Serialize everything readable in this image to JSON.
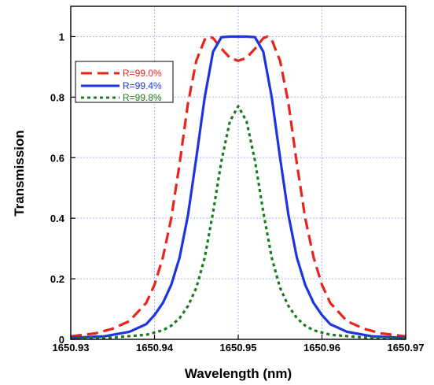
{
  "chart_data": {
    "type": "line",
    "title": "",
    "xlabel": "Wavelength (nm)",
    "ylabel": "Transmission",
    "xlim": [
      1650.93,
      1650.97
    ],
    "ylim": [
      0,
      1.1
    ],
    "x_ticks": [
      1650.93,
      1650.94,
      1650.95,
      1650.96,
      1650.97
    ],
    "x_tick_labels": [
      "1650.93",
      "1650.94",
      "1650.95",
      "1650.96",
      "1650.97"
    ],
    "y_ticks": [
      0,
      0.2,
      0.4,
      0.6,
      0.8,
      1
    ],
    "y_tick_labels": [
      "0",
      "0.2",
      "0.4",
      "0.6",
      "0.8",
      "1"
    ],
    "grid": true,
    "legend_position": "upper-left",
    "series": [
      {
        "name": "R=99.0%",
        "color": "#e8241b",
        "dash": "dashed",
        "x": [
          1650.93,
          1650.933,
          1650.935,
          1650.937,
          1650.939,
          1650.94,
          1650.941,
          1650.942,
          1650.943,
          1650.944,
          1650.945,
          1650.946,
          1650.9465,
          1650.947,
          1650.948,
          1650.949,
          1650.95,
          1650.951,
          1650.952,
          1650.953,
          1650.9535,
          1650.954,
          1650.955,
          1650.956,
          1650.957,
          1650.958,
          1650.959,
          1650.96,
          1650.961,
          1650.963,
          1650.965,
          1650.967,
          1650.97
        ],
        "y": [
          0.01,
          0.02,
          0.035,
          0.06,
          0.12,
          0.18,
          0.27,
          0.4,
          0.58,
          0.78,
          0.92,
          0.99,
          1.0,
          0.995,
          0.96,
          0.93,
          0.92,
          0.93,
          0.96,
          0.995,
          1.0,
          0.99,
          0.92,
          0.78,
          0.58,
          0.4,
          0.27,
          0.18,
          0.12,
          0.06,
          0.035,
          0.02,
          0.01
        ]
      },
      {
        "name": "R=99.4%",
        "color": "#1c35e0",
        "dash": "solid",
        "x": [
          1650.93,
          1650.934,
          1650.937,
          1650.939,
          1650.94,
          1650.941,
          1650.942,
          1650.943,
          1650.944,
          1650.945,
          1650.946,
          1650.947,
          1650.948,
          1650.949,
          1650.95,
          1650.951,
          1650.952,
          1650.953,
          1650.954,
          1650.955,
          1650.956,
          1650.957,
          1650.958,
          1650.959,
          1650.96,
          1650.961,
          1650.963,
          1650.966,
          1650.97
        ],
        "y": [
          0.005,
          0.01,
          0.025,
          0.05,
          0.08,
          0.12,
          0.18,
          0.27,
          0.41,
          0.6,
          0.8,
          0.95,
          0.998,
          1.0,
          1.0,
          1.0,
          0.998,
          0.95,
          0.8,
          0.6,
          0.41,
          0.27,
          0.18,
          0.12,
          0.08,
          0.05,
          0.025,
          0.01,
          0.005
        ]
      },
      {
        "name": "R=99.8%",
        "color": "#1e7a1e",
        "dash": "dotted",
        "x": [
          1650.93,
          1650.935,
          1650.939,
          1650.941,
          1650.942,
          1650.943,
          1650.944,
          1650.945,
          1650.946,
          1650.947,
          1650.948,
          1650.949,
          1650.95,
          1650.951,
          1650.952,
          1650.953,
          1650.954,
          1650.955,
          1650.956,
          1650.957,
          1650.958,
          1650.959,
          1650.961,
          1650.965,
          1650.97
        ],
        "y": [
          0.002,
          0.006,
          0.015,
          0.03,
          0.045,
          0.07,
          0.11,
          0.17,
          0.27,
          0.42,
          0.59,
          0.72,
          0.77,
          0.72,
          0.59,
          0.42,
          0.27,
          0.17,
          0.11,
          0.07,
          0.045,
          0.03,
          0.015,
          0.006,
          0.002
        ]
      }
    ]
  }
}
